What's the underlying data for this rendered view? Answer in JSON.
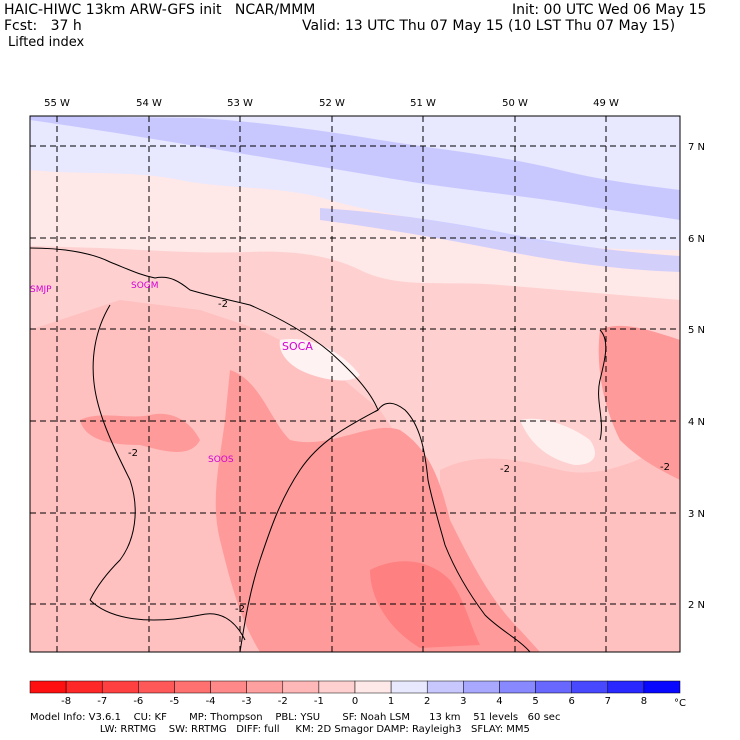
{
  "header": {
    "model_line": "HAIC-HIWC 13km ARW-GFS init   NCAR/MMM",
    "fcst_line": "Fcst:   37 h",
    "init_line": "Init: 00 UTC Wed 06 May 15",
    "valid_line": "Valid: 13 UTC Thu 07 May 15 (10 LST Thu 07 May 15)",
    "field_name": "Lifted index"
  },
  "map": {
    "lon_labels": [
      "55 W",
      "54 W",
      "53 W",
      "52 W",
      "51 W",
      "50 W",
      "49 W"
    ],
    "lat_labels": [
      "7 N",
      "6 N",
      "5 N",
      "4 N",
      "3 N",
      "2 N"
    ],
    "stations": [
      {
        "id": "SMJP",
        "label": "SMJP"
      },
      {
        "id": "SOGM",
        "label": "SOGM"
      },
      {
        "id": "SOCA",
        "label": "SOCA"
      },
      {
        "id": "SOOS",
        "label": "SOOS"
      }
    ],
    "contour_labels": [
      "-2",
      "-2",
      "-2",
      "-2",
      "-2"
    ]
  },
  "colorbar": {
    "ticks": [
      "-8",
      "-7",
      "-6",
      "-5",
      "-4",
      "-3",
      "-2",
      "-1",
      "0",
      "1",
      "2",
      "3",
      "4",
      "5",
      "6",
      "7",
      "8"
    ],
    "unit": "°C",
    "colors": [
      "#ff1010",
      "#ff2828",
      "#ff4040",
      "#ff5858",
      "#ff7070",
      "#ff8888",
      "#ffa0a0",
      "#ffb8b8",
      "#ffd0d0",
      "#ffe8e8",
      "#e8e8ff",
      "#c8c8ff",
      "#a8a8ff",
      "#8888ff",
      "#6868ff",
      "#4848ff",
      "#2828ff",
      "#0808ff"
    ]
  },
  "footer": {
    "line1": "Model Info: V3.6.1    CU: KF       MP: Thompson    PBL: YSU       SF: Noah LSM      13 km    51 levels   60 sec",
    "line2": "                      LW: RRTMG    SW: RRTMG   DIFF: full     KM: 2D Smagor DAMP: Rayleigh3   SFLAY: MM5"
  }
}
